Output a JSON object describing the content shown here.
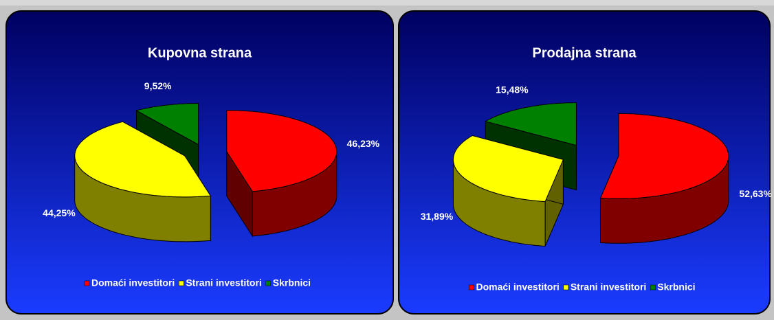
{
  "chart_data": [
    {
      "type": "pie",
      "title": "Kupovna strana",
      "categories": [
        "Domaći investitori",
        "Strani investitori",
        "Skrbnici"
      ],
      "values": [
        46.23,
        44.25,
        9.52
      ],
      "value_labels": [
        "46,23%",
        "44,25%",
        "9,52%"
      ],
      "colors": [
        "#ff0000",
        "#ffff00",
        "#008000"
      ],
      "legend": "bottom"
    },
    {
      "type": "pie",
      "title": "Prodajna strana",
      "categories": [
        "Domaći investitori",
        "Strani investitori",
        "Skrbnici"
      ],
      "values": [
        52.63,
        31.89,
        15.48
      ],
      "value_labels": [
        "52,63%",
        "31,89%",
        "15,48%"
      ],
      "colors": [
        "#ff0000",
        "#ffff00",
        "#008000"
      ],
      "legend": "bottom"
    }
  ]
}
